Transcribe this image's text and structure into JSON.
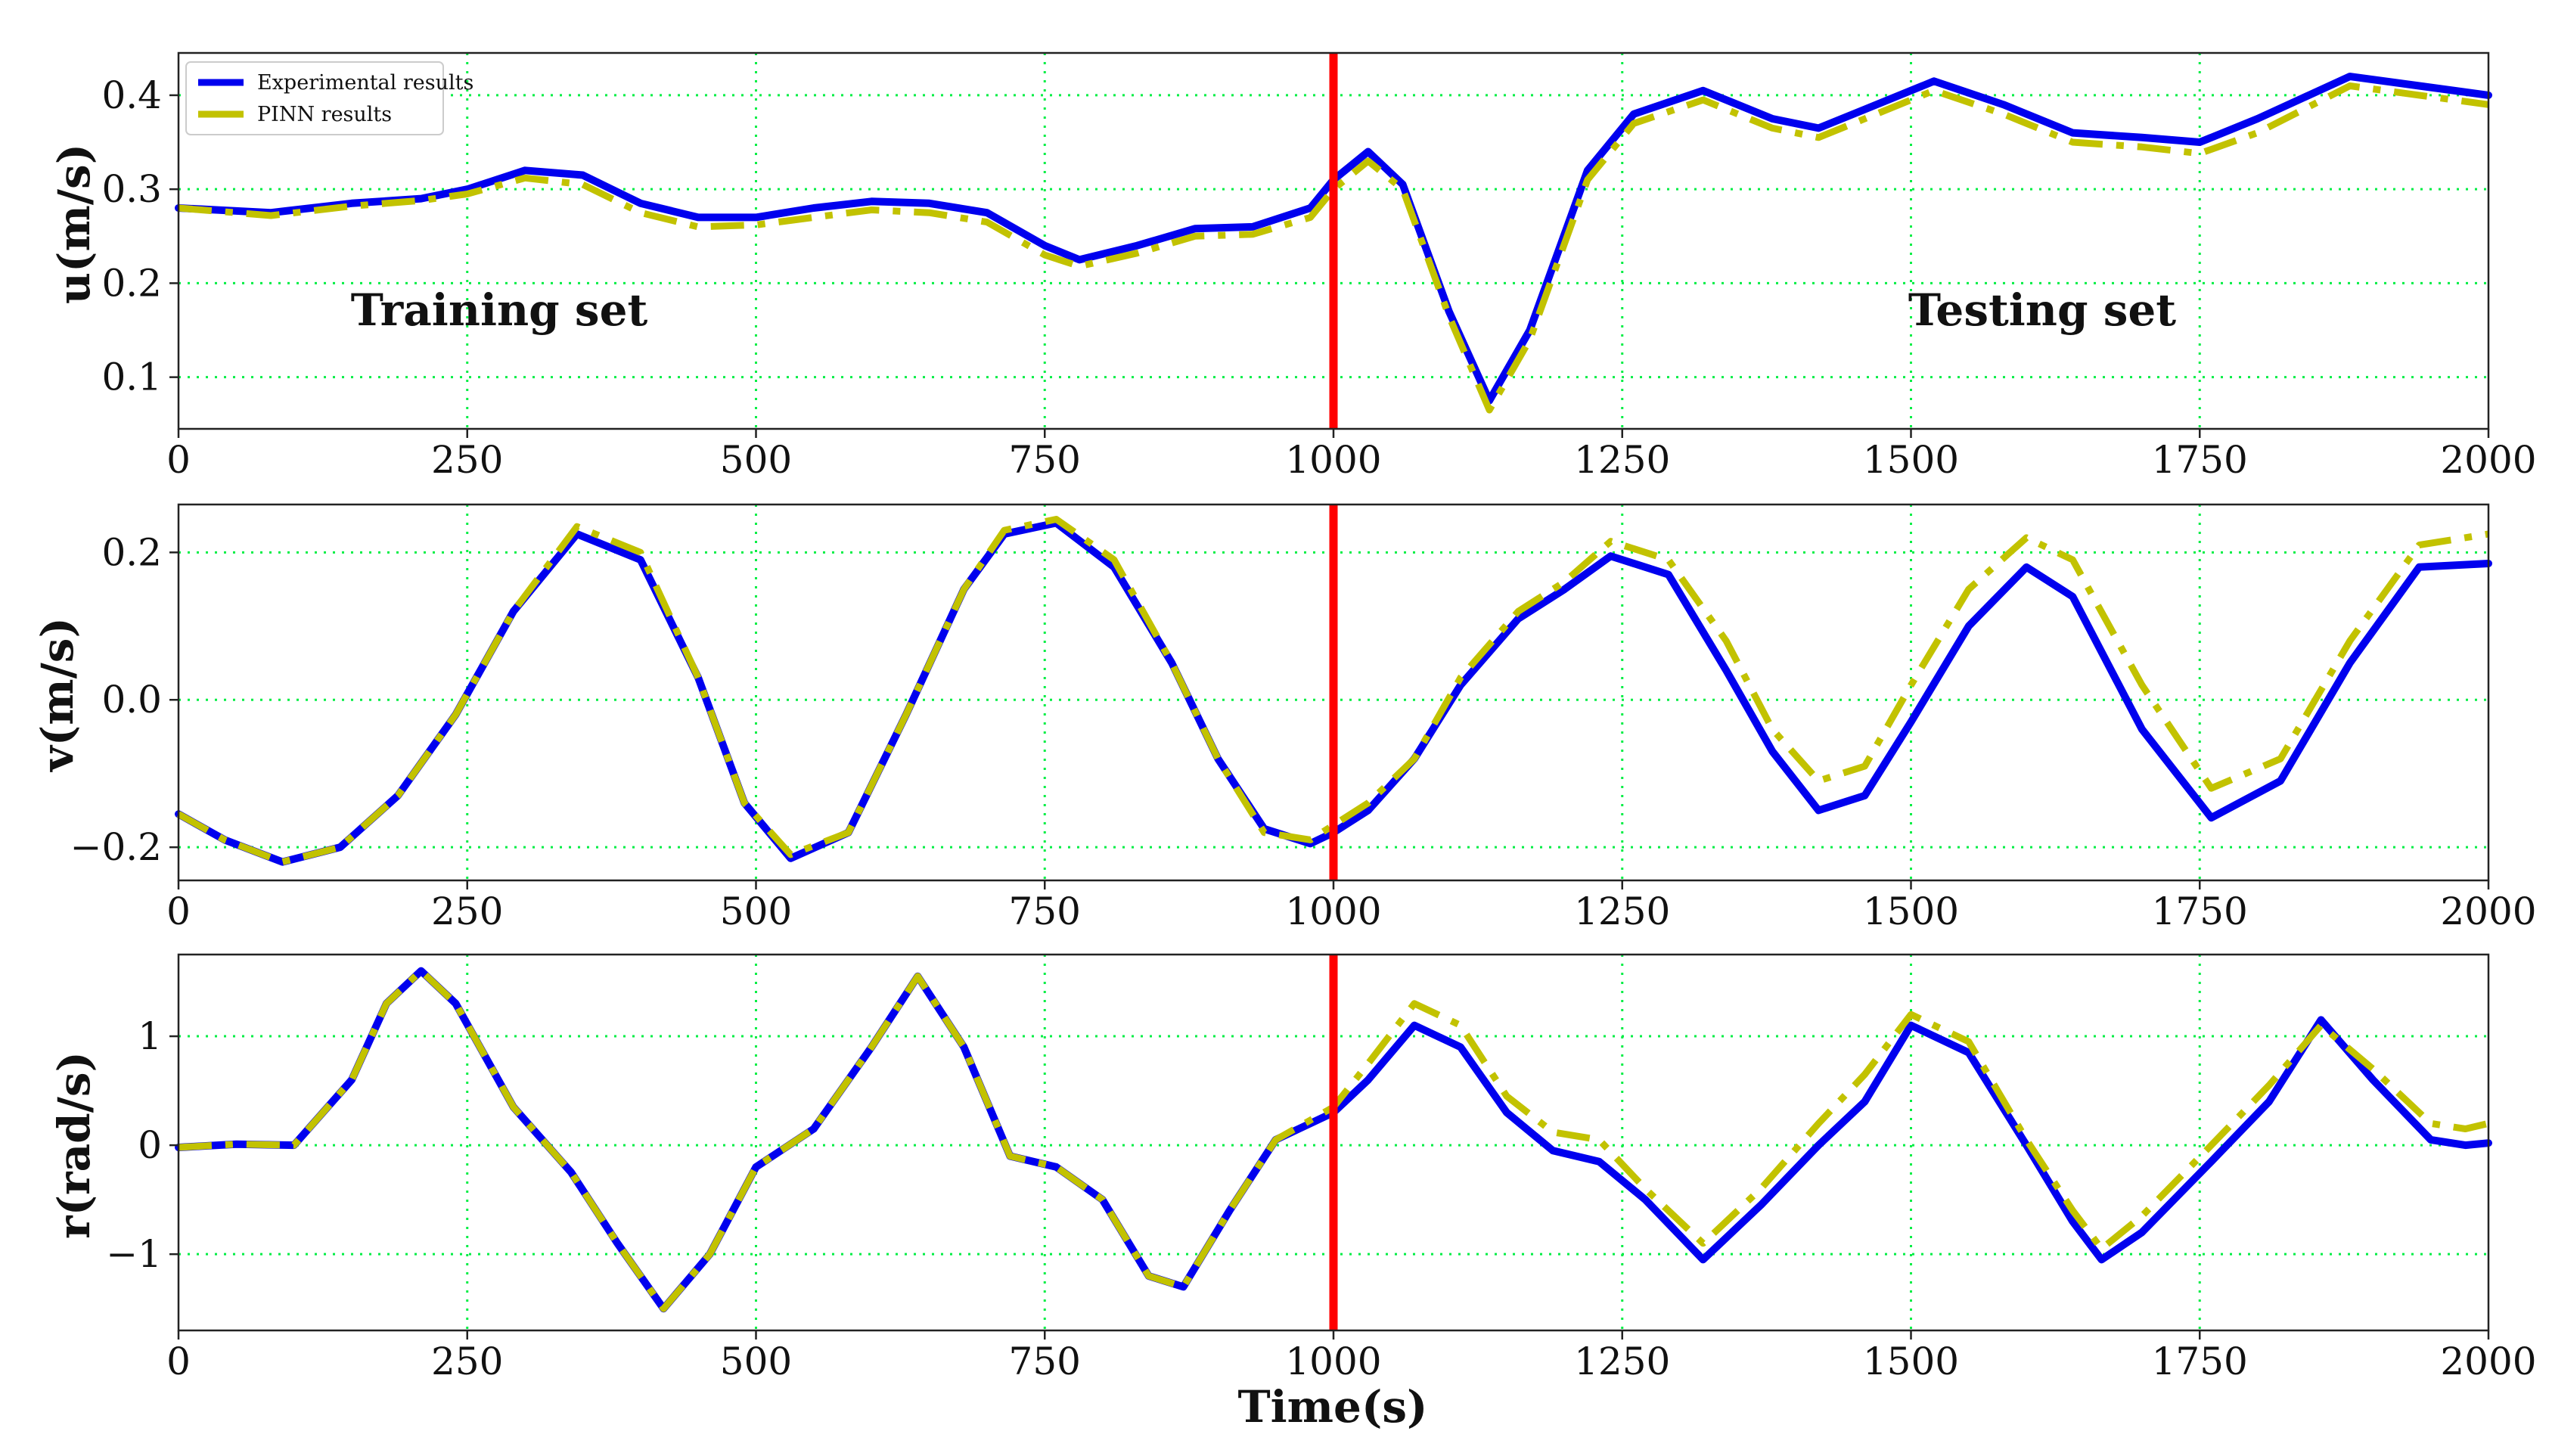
{
  "chart_data": {
    "type": "line",
    "xlabel": "Time(s)",
    "xlim": [
      0,
      2000
    ],
    "xticks": [
      0,
      250,
      500,
      750,
      1000,
      1250,
      1500,
      1750,
      2000
    ],
    "split_x": 1000,
    "split_color": "#ff0000",
    "grid": true,
    "grid_color": "#00ee44",
    "legend": {
      "placement": "top-left of top panel",
      "entries": [
        "Experimental results",
        "PINN results"
      ]
    },
    "annotations": [
      "Training set",
      "Testing set"
    ],
    "series_style": [
      {
        "name": "Experimental results",
        "color": "#0000ee",
        "dash": "solid"
      },
      {
        "name": "PINN results",
        "color": "#c2c200",
        "dash": "dashdot"
      }
    ],
    "panels": [
      {
        "ylabel": "u(m/s)",
        "ylim": [
          0.045,
          0.445
        ],
        "yticks": [
          {
            "v": 0.1,
            "label": "0.1"
          },
          {
            "v": 0.2,
            "label": "0.2"
          },
          {
            "v": 0.3,
            "label": "0.3"
          },
          {
            "v": 0.4,
            "label": "0.4"
          }
        ],
        "x": [
          0,
          80,
          150,
          210,
          250,
          300,
          350,
          400,
          450,
          500,
          550,
          600,
          650,
          700,
          750,
          780,
          830,
          880,
          930,
          980,
          1000,
          1030,
          1060,
          1100,
          1135,
          1170,
          1220,
          1260,
          1320,
          1380,
          1420,
          1460,
          1520,
          1580,
          1640,
          1700,
          1750,
          1800,
          1880,
          1940,
          2000
        ],
        "series": [
          {
            "name": "Experimental results",
            "values": [
              0.28,
              0.275,
              0.285,
              0.29,
              0.3,
              0.32,
              0.315,
              0.285,
              0.27,
              0.27,
              0.28,
              0.287,
              0.285,
              0.275,
              0.24,
              0.225,
              0.24,
              0.258,
              0.26,
              0.28,
              0.31,
              0.34,
              0.305,
              0.17,
              0.075,
              0.15,
              0.32,
              0.38,
              0.405,
              0.375,
              0.365,
              0.385,
              0.415,
              0.39,
              0.36,
              0.355,
              0.35,
              0.375,
              0.42,
              0.41,
              0.4
            ]
          },
          {
            "name": "PINN results",
            "values": [
              0.28,
              0.272,
              0.282,
              0.288,
              0.295,
              0.312,
              0.305,
              0.275,
              0.26,
              0.262,
              0.27,
              0.278,
              0.275,
              0.265,
              0.23,
              0.218,
              0.232,
              0.25,
              0.252,
              0.27,
              0.3,
              0.33,
              0.3,
              0.165,
              0.065,
              0.14,
              0.31,
              0.37,
              0.395,
              0.365,
              0.355,
              0.375,
              0.405,
              0.38,
              0.35,
              0.345,
              0.338,
              0.36,
              0.41,
              0.4,
              0.39
            ]
          }
        ]
      },
      {
        "ylabel": "v(m/s)",
        "ylim": [
          -0.245,
          0.265
        ],
        "yticks": [
          {
            "v": -0.2,
            "label": "−0.2"
          },
          {
            "v": 0.0,
            "label": "0.0"
          },
          {
            "v": 0.2,
            "label": "0.2"
          }
        ],
        "x": [
          0,
          40,
          90,
          140,
          190,
          240,
          290,
          345,
          400,
          450,
          490,
          530,
          580,
          630,
          680,
          715,
          760,
          810,
          860,
          900,
          940,
          980,
          1000,
          1030,
          1070,
          1110,
          1160,
          1200,
          1240,
          1290,
          1340,
          1380,
          1420,
          1460,
          1500,
          1550,
          1600,
          1640,
          1700,
          1760,
          1820,
          1880,
          1940,
          2000
        ],
        "series": [
          {
            "name": "Experimental results",
            "values": [
              -0.155,
              -0.19,
              -0.22,
              -0.2,
              -0.13,
              -0.02,
              0.12,
              0.225,
              0.19,
              0.03,
              -0.14,
              -0.215,
              -0.18,
              -0.02,
              0.15,
              0.225,
              0.24,
              0.18,
              0.05,
              -0.08,
              -0.175,
              -0.195,
              -0.18,
              -0.15,
              -0.08,
              0.02,
              0.11,
              0.15,
              0.195,
              0.17,
              0.04,
              -0.07,
              -0.15,
              -0.13,
              -0.03,
              0.1,
              0.18,
              0.14,
              -0.04,
              -0.16,
              -0.11,
              0.05,
              0.18,
              0.185
            ]
          },
          {
            "name": "PINN results",
            "values": [
              -0.155,
              -0.19,
              -0.22,
              -0.2,
              -0.13,
              -0.02,
              0.12,
              0.235,
              0.2,
              0.03,
              -0.14,
              -0.21,
              -0.18,
              -0.02,
              0.15,
              0.23,
              0.245,
              0.19,
              0.05,
              -0.08,
              -0.18,
              -0.19,
              -0.17,
              -0.14,
              -0.08,
              0.03,
              0.12,
              0.16,
              0.215,
              0.19,
              0.08,
              -0.04,
              -0.11,
              -0.09,
              0.02,
              0.15,
              0.22,
              0.19,
              0.02,
              -0.12,
              -0.08,
              0.08,
              0.21,
              0.225
            ]
          }
        ]
      },
      {
        "ylabel": "r(rad/s)",
        "ylim": [
          -1.7,
          1.75
        ],
        "yticks": [
          {
            "v": -1,
            "label": "−1"
          },
          {
            "v": 0,
            "label": "0"
          },
          {
            "v": 1,
            "label": "1"
          }
        ],
        "x": [
          0,
          50,
          100,
          150,
          180,
          210,
          240,
          290,
          340,
          380,
          420,
          460,
          500,
          550,
          600,
          640,
          680,
          720,
          760,
          800,
          840,
          870,
          910,
          950,
          1000,
          1030,
          1070,
          1110,
          1150,
          1190,
          1230,
          1270,
          1320,
          1370,
          1420,
          1460,
          1500,
          1550,
          1600,
          1640,
          1665,
          1700,
          1760,
          1810,
          1855,
          1900,
          1950,
          1980,
          2000
        ],
        "series": [
          {
            "name": "Experimental results",
            "values": [
              -0.02,
              0.01,
              0.0,
              0.6,
              1.3,
              1.6,
              1.3,
              0.35,
              -0.25,
              -0.9,
              -1.5,
              -1.0,
              -0.2,
              0.15,
              0.9,
              1.55,
              0.9,
              -0.1,
              -0.2,
              -0.5,
              -1.2,
              -1.3,
              -0.6,
              0.05,
              0.3,
              0.6,
              1.1,
              0.9,
              0.3,
              -0.05,
              -0.15,
              -0.5,
              -1.05,
              -0.55,
              0.0,
              0.4,
              1.1,
              0.85,
              0.0,
              -0.7,
              -1.05,
              -0.8,
              -0.15,
              0.4,
              1.15,
              0.6,
              0.05,
              0.0,
              0.02
            ]
          },
          {
            "name": "PINN results",
            "values": [
              -0.02,
              0.01,
              0.0,
              0.6,
              1.3,
              1.6,
              1.3,
              0.35,
              -0.25,
              -0.9,
              -1.5,
              -1.0,
              -0.2,
              0.15,
              0.9,
              1.55,
              0.9,
              -0.1,
              -0.2,
              -0.5,
              -1.2,
              -1.3,
              -0.6,
              0.05,
              0.35,
              0.75,
              1.3,
              1.1,
              0.45,
              0.12,
              0.05,
              -0.4,
              -0.9,
              -0.4,
              0.2,
              0.65,
              1.2,
              0.95,
              0.05,
              -0.6,
              -0.95,
              -0.65,
              0.0,
              0.55,
              1.1,
              0.7,
              0.2,
              0.15,
              0.2
            ]
          }
        ]
      }
    ]
  }
}
